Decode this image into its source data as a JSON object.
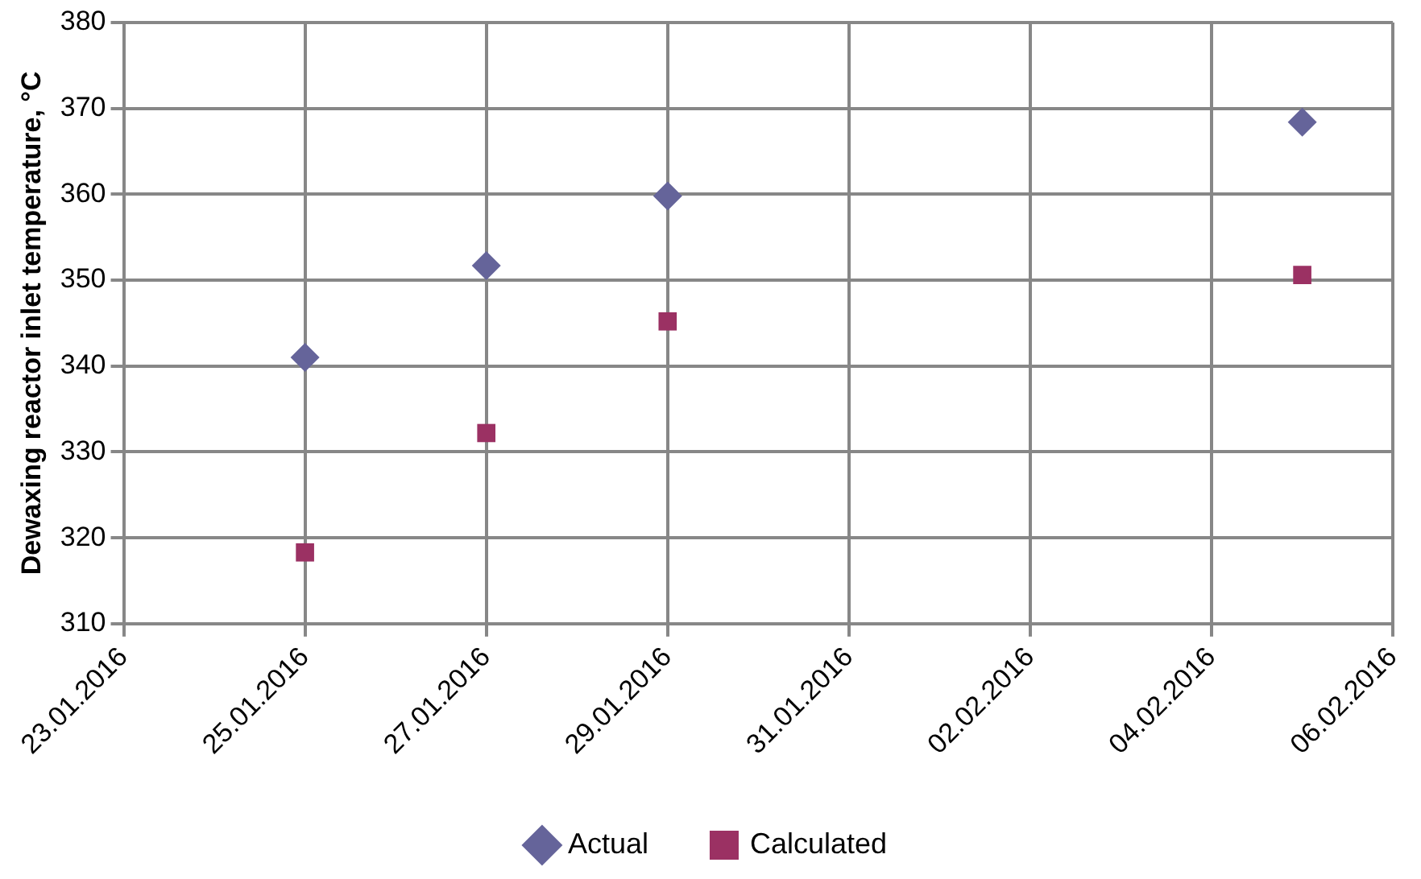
{
  "chart_data": {
    "type": "scatter",
    "ylabel": "Dewaxing reactor inlet temperature, °C",
    "xlim": [
      "2016-01-23",
      "2016-02-06"
    ],
    "xticks": [
      {
        "value": "2016-01-23",
        "label": "23.01.2016"
      },
      {
        "value": "2016-01-25",
        "label": "25.01.2016"
      },
      {
        "value": "2016-01-27",
        "label": "27.01.2016"
      },
      {
        "value": "2016-01-29",
        "label": "29.01.2016"
      },
      {
        "value": "2016-01-31",
        "label": "31.01.2016"
      },
      {
        "value": "2016-02-02",
        "label": "02.02.2016"
      },
      {
        "value": "2016-02-04",
        "label": "04.02.2016"
      },
      {
        "value": "2016-02-06",
        "label": "06.02.2016"
      }
    ],
    "ylim": [
      310,
      380
    ],
    "yticks": [
      310,
      320,
      330,
      340,
      350,
      360,
      370,
      380
    ],
    "x": [
      "2016-01-25",
      "2016-01-27",
      "2016-01-29",
      "2016-02-05"
    ],
    "series": [
      {
        "name": "Actual",
        "color": "#65649a",
        "marker": "diamond",
        "values": [
          341.0,
          351.7,
          359.8,
          368.4
        ]
      },
      {
        "name": "Calculated",
        "color": "#9b3163",
        "marker": "square",
        "values": [
          318.3,
          332.2,
          345.2,
          350.6
        ]
      }
    ],
    "grid": true,
    "legend": "bottom"
  }
}
